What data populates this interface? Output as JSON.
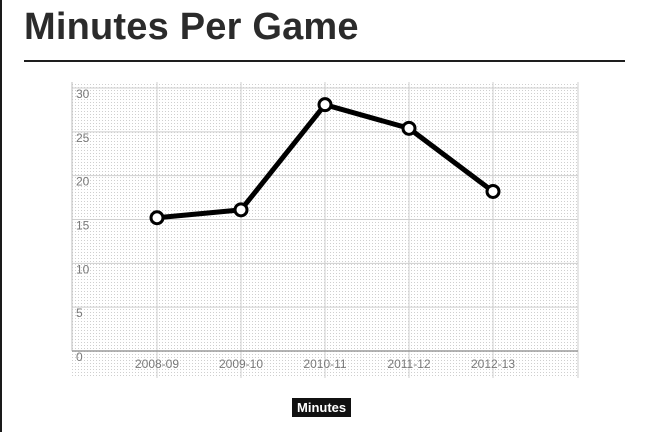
{
  "header": {
    "title": "Minutes Per Game"
  },
  "chart_data": {
    "type": "line",
    "title": "Minutes Per Game",
    "xlabel": "",
    "ylabel": "",
    "categories": [
      "2008-09",
      "2009-10",
      "2010-11",
      "2011-12",
      "2012-13"
    ],
    "series": [
      {
        "name": "Minutes",
        "values": [
          15.2,
          16.1,
          28.1,
          25.4,
          18.2
        ]
      }
    ],
    "ylim": [
      0,
      30
    ],
    "yticks": [
      0,
      5,
      10,
      15,
      20,
      25,
      30
    ],
    "grid": true,
    "legend_position": "bottom-center",
    "colors": {
      "line": "#000000",
      "marker_fill": "#ffffff",
      "grid": "#cfcfcf"
    }
  }
}
